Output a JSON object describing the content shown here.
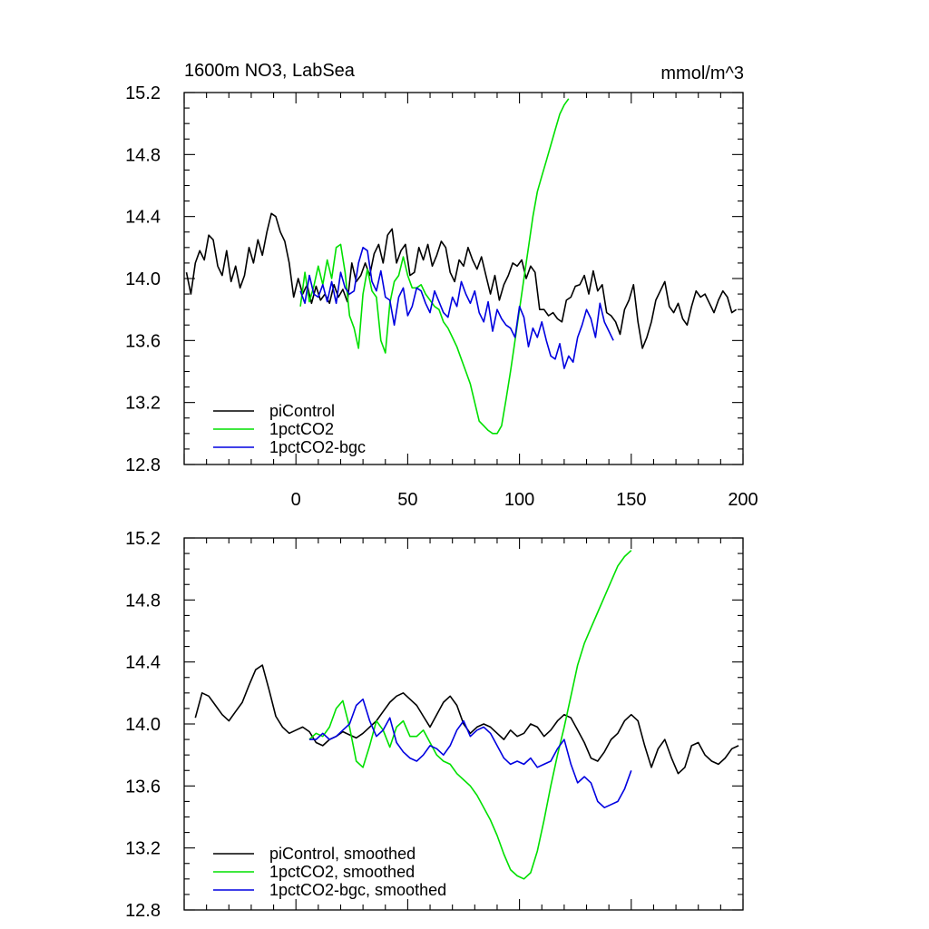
{
  "chart_data": [
    {
      "type": "line",
      "title": "1600m NO3, LabSea",
      "units": "mmol/m^3",
      "xlim": [
        -50,
        200
      ],
      "ylim": [
        12.8,
        15.2
      ],
      "x_ticks": [
        0,
        50,
        100,
        150,
        200
      ],
      "y_ticks": [
        12.8,
        13.2,
        13.6,
        14.0,
        14.4,
        14.8,
        15.2
      ],
      "x_tick_labels": [
        "0",
        "50",
        "100",
        "150",
        "200"
      ],
      "y_tick_labels": [
        "12.8",
        "13.2",
        "13.6",
        "14.0",
        "14.4",
        "14.8",
        "15.2"
      ],
      "legend_position": "bottom-left",
      "series": [
        {
          "name": "piControl",
          "color": "#000000",
          "x_start": -49,
          "x_step": 2,
          "values": [
            14.04,
            13.9,
            14.1,
            14.18,
            14.12,
            14.28,
            14.25,
            14.08,
            14.02,
            14.18,
            13.98,
            14.08,
            13.94,
            14.02,
            14.2,
            14.1,
            14.25,
            14.15,
            14.3,
            14.42,
            14.4,
            14.3,
            14.24,
            14.1,
            13.88,
            14.0,
            13.9,
            13.96,
            13.84,
            13.95,
            13.86,
            13.9,
            13.84,
            13.96,
            13.88,
            13.93,
            13.85,
            14.1,
            13.98,
            14.02,
            14.1,
            14.02,
            14.16,
            14.22,
            14.1,
            14.28,
            14.32,
            14.1,
            14.18,
            14.22,
            14.02,
            14.04,
            14.2,
            14.12,
            14.22,
            14.08,
            14.15,
            14.24,
            14.2,
            14.04,
            13.98,
            14.12,
            14.08,
            14.2,
            14.12,
            14.06,
            14.14,
            14.02,
            13.9,
            14.02,
            13.86,
            13.96,
            14.02,
            14.1,
            14.08,
            14.12,
            14.0,
            14.08,
            14.04,
            13.8,
            13.8,
            13.76,
            13.78,
            13.74,
            13.72,
            13.86,
            13.88,
            13.95,
            13.96,
            14.02,
            13.9,
            14.05,
            13.92,
            13.96,
            13.78,
            13.76,
            13.72,
            13.64,
            13.8,
            13.86,
            13.96,
            13.72,
            13.55,
            13.62,
            13.72,
            13.86,
            13.92,
            13.98,
            13.82,
            13.78,
            13.84,
            13.74,
            13.7,
            13.82,
            13.92,
            13.88,
            13.9,
            13.84,
            13.78,
            13.86,
            13.92,
            13.88,
            13.78,
            13.8
          ]
        },
        {
          "name": "1pctCO2",
          "color": "#00e000",
          "x_start": 2,
          "x_step": 2,
          "values": [
            13.82,
            14.04,
            13.85,
            13.95,
            14.08,
            13.96,
            14.12,
            14.0,
            14.2,
            14.22,
            14.04,
            13.76,
            13.68,
            13.55,
            13.9,
            14.06,
            13.92,
            13.88,
            13.6,
            13.52,
            13.84,
            13.98,
            14.02,
            14.14,
            14.02,
            13.94,
            13.94,
            13.96,
            13.9,
            13.86,
            13.82,
            13.8,
            13.72,
            13.68,
            13.62,
            13.56,
            13.48,
            13.4,
            13.32,
            13.2,
            13.08,
            13.05,
            13.02,
            13.0,
            13.0,
            13.05,
            13.22,
            13.4,
            13.6,
            13.8,
            14.0,
            14.2,
            14.4,
            14.56,
            14.66,
            14.76,
            14.86,
            14.96,
            15.06,
            15.12,
            15.16
          ]
        },
        {
          "name": "1pctCO2-bgc",
          "color": "#0000e0",
          "x_start": 2,
          "x_step": 2,
          "values": [
            13.92,
            13.84,
            14.02,
            13.9,
            13.88,
            13.96,
            13.85,
            13.98,
            13.84,
            14.04,
            13.94,
            13.9,
            13.92,
            14.1,
            14.2,
            14.18,
            13.98,
            13.92,
            14.05,
            13.88,
            13.86,
            13.7,
            13.88,
            13.94,
            13.76,
            13.82,
            13.94,
            13.92,
            13.84,
            13.78,
            13.92,
            13.85,
            13.78,
            13.75,
            13.88,
            13.82,
            13.98,
            13.9,
            13.84,
            13.92,
            13.78,
            13.72,
            13.85,
            13.66,
            13.8,
            13.74,
            13.7,
            13.68,
            13.62,
            13.82,
            13.75,
            13.56,
            13.68,
            13.62,
            13.72,
            13.6,
            13.5,
            13.48,
            13.58,
            13.42,
            13.5,
            13.46,
            13.62,
            13.7,
            13.8,
            13.74,
            13.62,
            13.84,
            13.72,
            13.66,
            13.6
          ]
        }
      ]
    },
    {
      "type": "line",
      "title": "",
      "xlim": [
        -50,
        200
      ],
      "ylim": [
        12.8,
        15.2
      ],
      "y_ticks": [
        12.8,
        13.2,
        13.6,
        14.0,
        14.4,
        14.8,
        15.2
      ],
      "y_tick_labels": [
        "12.8",
        "13.2",
        "13.6",
        "14.0",
        "14.4",
        "14.8",
        "15.2"
      ],
      "legend_position": "bottom-left",
      "series": [
        {
          "name": "piControl, smoothed",
          "color": "#000000",
          "x": [
            -45,
            -42,
            -39,
            -36,
            -33,
            -30,
            -27,
            -24,
            -21,
            -18,
            -15,
            -12,
            -9,
            -6,
            -3,
            0,
            3,
            6,
            9,
            12,
            15,
            18,
            21,
            24,
            27,
            30,
            33,
            36,
            39,
            42,
            45,
            48,
            51,
            54,
            57,
            60,
            63,
            66,
            69,
            72,
            75,
            78,
            81,
            84,
            87,
            90,
            93,
            96,
            99,
            102,
            105,
            108,
            111,
            114,
            117,
            120,
            123,
            126,
            129,
            132,
            135,
            138,
            141,
            144,
            147,
            150,
            153,
            156,
            159,
            162,
            165,
            168,
            171,
            174,
            177,
            180,
            183,
            186,
            189,
            192,
            195,
            198
          ],
          "values": [
            14.04,
            14.2,
            14.18,
            14.12,
            14.06,
            14.02,
            14.08,
            14.14,
            14.25,
            14.35,
            14.38,
            14.22,
            14.05,
            13.98,
            13.94,
            13.96,
            13.98,
            13.95,
            13.88,
            13.86,
            13.9,
            13.92,
            13.95,
            13.93,
            13.91,
            13.94,
            13.98,
            14.02,
            14.08,
            14.14,
            14.18,
            14.2,
            14.16,
            14.12,
            14.05,
            13.98,
            14.06,
            14.14,
            14.18,
            14.12,
            14.0,
            13.94,
            13.98,
            14.0,
            13.98,
            13.94,
            13.9,
            13.96,
            13.92,
            13.94,
            14.0,
            13.98,
            13.92,
            13.96,
            14.02,
            14.06,
            14.04,
            13.96,
            13.88,
            13.78,
            13.76,
            13.82,
            13.9,
            13.94,
            14.02,
            14.06,
            14.02,
            13.86,
            13.72,
            13.84,
            13.9,
            13.78,
            13.68,
            13.72,
            13.86,
            13.88,
            13.8,
            13.76,
            13.74,
            13.78,
            13.84,
            13.86
          ]
        },
        {
          "name": "1pctCO2, smoothed",
          "color": "#00e000",
          "x": [
            6,
            9,
            12,
            15,
            18,
            21,
            24,
            27,
            30,
            33,
            36,
            39,
            42,
            45,
            48,
            51,
            54,
            57,
            60,
            63,
            66,
            69,
            72,
            75,
            78,
            81,
            84,
            87,
            90,
            93,
            96,
            99,
            102,
            105,
            108,
            111,
            114,
            117,
            120,
            123,
            126,
            129,
            132,
            135,
            138,
            141,
            144,
            147,
            150
          ],
          "values": [
            13.9,
            13.94,
            13.92,
            13.98,
            14.1,
            14.15,
            13.98,
            13.76,
            13.72,
            13.86,
            14.02,
            13.96,
            13.85,
            13.98,
            14.02,
            13.92,
            13.92,
            13.96,
            13.88,
            13.8,
            13.76,
            13.74,
            13.68,
            13.64,
            13.6,
            13.54,
            13.46,
            13.38,
            13.28,
            13.16,
            13.06,
            13.02,
            13.0,
            13.04,
            13.18,
            13.38,
            13.6,
            13.8,
            13.98,
            14.18,
            14.38,
            14.52,
            14.62,
            14.72,
            14.82,
            14.92,
            15.02,
            15.08,
            15.12
          ]
        },
        {
          "name": "1pctCO2-bgc, smoothed",
          "color": "#0000e0",
          "x": [
            6,
            9,
            12,
            15,
            18,
            21,
            24,
            27,
            30,
            33,
            36,
            39,
            42,
            45,
            48,
            51,
            54,
            57,
            60,
            63,
            66,
            69,
            72,
            75,
            78,
            81,
            84,
            87,
            90,
            93,
            96,
            99,
            102,
            105,
            108,
            111,
            114,
            117,
            120,
            123,
            126,
            129,
            132,
            135,
            138,
            141,
            144,
            147,
            150
          ],
          "values": [
            13.9,
            13.9,
            13.94,
            13.9,
            13.92,
            13.96,
            14.0,
            14.12,
            14.16,
            14.02,
            13.92,
            13.96,
            14.04,
            13.88,
            13.82,
            13.78,
            13.76,
            13.8,
            13.86,
            13.84,
            13.8,
            13.86,
            13.96,
            14.02,
            13.92,
            13.96,
            13.98,
            13.94,
            13.86,
            13.78,
            13.74,
            13.76,
            13.74,
            13.78,
            13.72,
            13.74,
            13.76,
            13.84,
            13.9,
            13.74,
            13.62,
            13.66,
            13.62,
            13.5,
            13.46,
            13.48,
            13.5,
            13.58,
            13.7
          ]
        }
      ]
    }
  ]
}
